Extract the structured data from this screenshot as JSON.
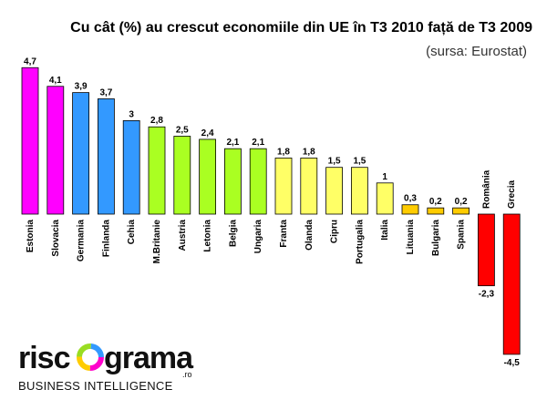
{
  "chart_data": {
    "type": "bar",
    "title": "Cu cât (%) au crescut economiile din UE în T3 2010 față de T3 2009",
    "subtitle": "(sursa: Eurostat)",
    "categories": [
      "Estonia",
      "Slovacia",
      "Germania",
      "Finlanda",
      "Cehia",
      "M.Britanie",
      "Austria",
      "Letonia",
      "Belgia",
      "Ungaria",
      "Franta",
      "Olanda",
      "Cipru",
      "Portugalia",
      "Italia",
      "Lituania",
      "Bulgaria",
      "Spania",
      "România",
      "Grecia"
    ],
    "values": [
      4.7,
      4.1,
      3.9,
      3.7,
      3.0,
      2.8,
      2.5,
      2.4,
      2.1,
      2.1,
      1.8,
      1.8,
      1.5,
      1.5,
      1.0,
      0.3,
      0.2,
      0.2,
      -2.3,
      -4.5
    ],
    "value_labels": [
      "4,7",
      "4,1",
      "3,9",
      "3,7",
      "3",
      "2,8",
      "2,5",
      "2,4",
      "2,1",
      "2,1",
      "1,8",
      "1,8",
      "1,5",
      "1,5",
      "1",
      "0,3",
      "0,2",
      "0,2",
      "-2,3",
      "-4,5"
    ],
    "colors": [
      "#ff00ff",
      "#ff00ff",
      "#3399ff",
      "#3399ff",
      "#3399ff",
      "#aaff22",
      "#aaff22",
      "#aaff22",
      "#aaff22",
      "#aaff22",
      "#ffff66",
      "#ffff66",
      "#ffff66",
      "#ffff66",
      "#ffff66",
      "#ffcc00",
      "#ffcc00",
      "#ffcc00",
      "#ff0000",
      "#ff0000"
    ],
    "ylim": [
      -4.5,
      4.7
    ],
    "grid": false,
    "legend": "none"
  },
  "logo": {
    "text_left": "risc",
    "text_right": "grama",
    "domain": ".ro",
    "tagline": "BUSINESS INTELLIGENCE"
  }
}
